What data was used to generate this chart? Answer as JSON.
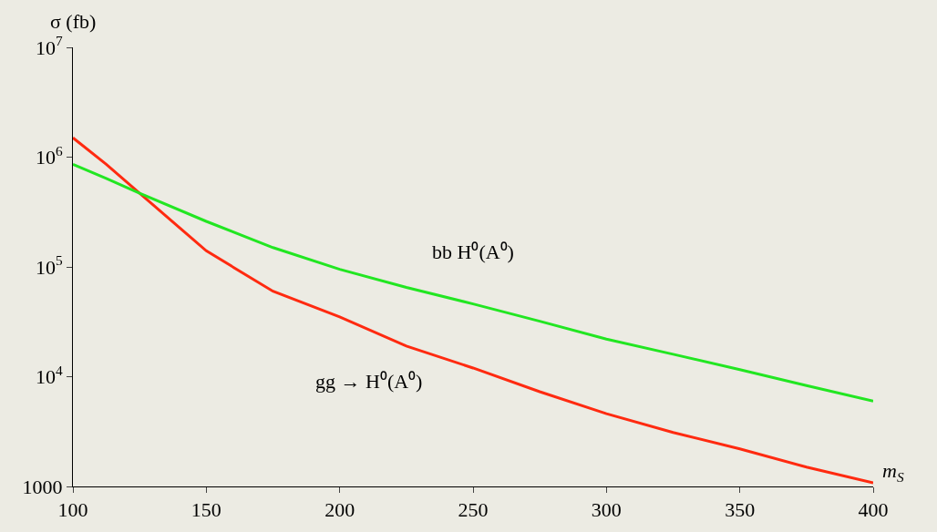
{
  "chart_data": {
    "type": "line",
    "xlabel": "m$_{S}$",
    "ylabel": "σ (fb)",
    "log": "y",
    "grid": false,
    "x": [
      100,
      112.5,
      125,
      150,
      175,
      200,
      225,
      250,
      275,
      300,
      325,
      350,
      375,
      400
    ],
    "series": [
      {
        "color": "#ff2a10",
        "values": [
          1500000,
          860000,
          470000,
          140000,
          60000,
          35000,
          19000,
          12000,
          7300,
          4600,
          3100,
          2200,
          1500,
          1080
        ]
      },
      {
        "color": "#22e622",
        "values": [
          860000,
          640000,
          470000,
          260000,
          150000,
          95000,
          65000,
          46000,
          32000,
          22000,
          16000,
          11600,
          8300,
          6000
        ]
      }
    ],
    "annotations": [
      "bb H⁰(A⁰)",
      "gg → H⁰(A⁰)"
    ],
    "xlim": [
      100,
      400
    ],
    "xticks": [
      100,
      150,
      200,
      250,
      300,
      350,
      400
    ],
    "ylim": [
      1000,
      10000000
    ],
    "yticks": [
      1000,
      {
        "value": 10000,
        "label": "10$^{4}$"
      },
      {
        "value": 100000,
        "label": "10$^{5}$"
      },
      {
        "value": 1000000,
        "label": "10$^{6}$"
      },
      {
        "value": 10000000,
        "label": "10$^{7}$"
      }
    ]
  }
}
